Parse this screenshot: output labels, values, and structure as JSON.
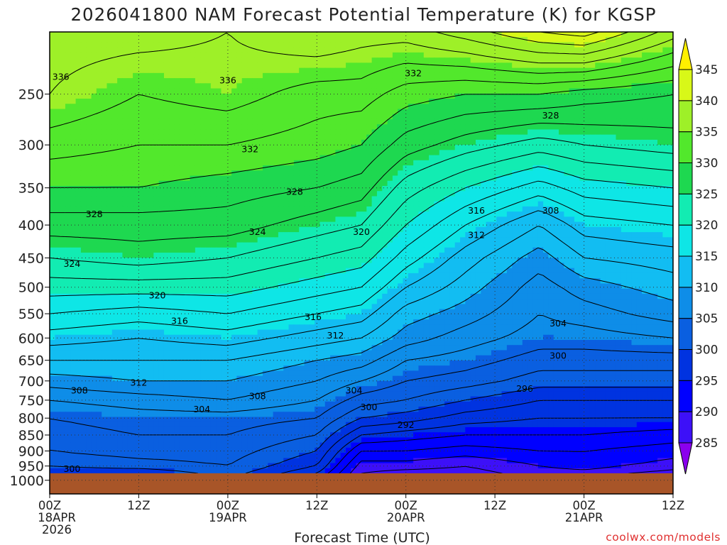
{
  "chart_data": {
    "type": "heatmap",
    "title": "2026041800 NAM Forecast Potential Temperature (K) for KGSP",
    "xlabel": "Forecast Time (UTC)",
    "ylabel": "",
    "watermark": "coolwx.com/models",
    "x_range_hours": [
      0,
      84
    ],
    "x_ticks": [
      {
        "hour": 0,
        "label": "00Z",
        "sub1": "18APR",
        "sub2": "2026"
      },
      {
        "hour": 12,
        "label": "12Z",
        "sub1": "",
        "sub2": ""
      },
      {
        "hour": 24,
        "label": "00Z",
        "sub1": "19APR",
        "sub2": ""
      },
      {
        "hour": 36,
        "label": "12Z",
        "sub1": "",
        "sub2": ""
      },
      {
        "hour": 48,
        "label": "00Z",
        "sub1": "20APR",
        "sub2": ""
      },
      {
        "hour": 60,
        "label": "12Z",
        "sub1": "",
        "sub2": ""
      },
      {
        "hour": 72,
        "label": "00Z",
        "sub1": "21APR",
        "sub2": ""
      },
      {
        "hour": 84,
        "label": "12Z",
        "sub1": "",
        "sub2": ""
      }
    ],
    "y_axis": {
      "type": "log-pressure",
      "range_hPa": [
        1050,
        200
      ]
    },
    "y_ticks": [
      250,
      300,
      350,
      400,
      450,
      500,
      550,
      600,
      650,
      700,
      750,
      800,
      850,
      900,
      950,
      1000
    ],
    "ground_pressure_hPa": 975,
    "colorbar": {
      "levels": [
        285,
        290,
        295,
        300,
        305,
        310,
        315,
        320,
        325,
        330,
        335,
        340,
        345
      ],
      "colors": [
        "#8a00ee",
        "#3d10f8",
        "#0000ff",
        "#0033e0",
        "#0a5fe0",
        "#0e8de8",
        "#12bdf2",
        "#0ee6e6",
        "#12ecb2",
        "#1ed850",
        "#52e82c",
        "#9ef028",
        "#d8f818",
        "#fff000"
      ]
    },
    "profile_levels_hPa": [
      200,
      250,
      300,
      350,
      400,
      450,
      500,
      550,
      600,
      650,
      700,
      750,
      800,
      850,
      900,
      950,
      975
    ],
    "profiles": [
      {
        "hour": 0,
        "theta": [
          337,
          336,
          333,
          330,
          327,
          324,
          321,
          318,
          315,
          312,
          309,
          306,
          304,
          303,
          302,
          300,
          299
        ]
      },
      {
        "hour": 12,
        "theta": [
          337,
          334,
          332,
          330,
          327,
          325,
          321,
          317,
          314,
          312,
          310,
          307,
          305,
          304,
          303,
          301,
          298
        ]
      },
      {
        "hour": 24,
        "theta": [
          336,
          335,
          332,
          329,
          327,
          324,
          321,
          318,
          315,
          312,
          310,
          308,
          305,
          304,
          303,
          302,
          301
        ]
      },
      {
        "hour": 36,
        "theta": [
          338,
          333,
          331,
          328,
          325,
          322,
          319,
          316,
          313,
          310,
          308,
          306,
          304,
          302,
          300,
          298,
          296
        ]
      },
      {
        "hour": 42,
        "theta": [
          337,
          333,
          330,
          327,
          324,
          321,
          318,
          315,
          312,
          309,
          306,
          303,
          300,
          296,
          292,
          289,
          288
        ]
      },
      {
        "hour": 48,
        "theta": [
          337,
          331,
          327,
          323,
          320,
          317,
          314,
          311,
          309,
          306,
          304,
          302,
          299,
          295,
          292,
          289,
          287
        ]
      },
      {
        "hour": 56,
        "theta": [
          339,
          330,
          325,
          320,
          316,
          313,
          311,
          309,
          307,
          305,
          303,
          300,
          297,
          294,
          291,
          288,
          287
        ]
      },
      {
        "hour": 66,
        "theta": [
          342,
          330,
          323,
          317,
          312,
          309,
          307,
          306,
          305,
          303,
          301,
          298,
          296,
          294,
          292,
          290,
          289
        ]
      },
      {
        "hour": 72,
        "theta": [
          343,
          329,
          324,
          319,
          315,
          312,
          309,
          307,
          305,
          303,
          301,
          298,
          296,
          294,
          292,
          291,
          289
        ]
      },
      {
        "hour": 84,
        "theta": [
          337,
          328,
          325,
          320,
          316,
          313,
          311,
          309,
          306,
          303,
          301,
          298,
          296,
          293,
          291,
          289,
          287
        ]
      }
    ],
    "contour_interval_K": 2,
    "contour_labels": [
      {
        "hour": 1.5,
        "hPa": 235,
        "value": "336"
      },
      {
        "hour": 24,
        "hPa": 238,
        "value": "336"
      },
      {
        "hour": 49,
        "hPa": 232,
        "value": "332"
      },
      {
        "hour": 67.5,
        "hPa": 270,
        "value": "328"
      },
      {
        "hour": 27,
        "hPa": 305,
        "value": "332"
      },
      {
        "hour": 33,
        "hPa": 355,
        "value": "328"
      },
      {
        "hour": 6,
        "hPa": 385,
        "value": "328"
      },
      {
        "hour": 28,
        "hPa": 410,
        "value": "324"
      },
      {
        "hour": 42,
        "hPa": 410,
        "value": "320"
      },
      {
        "hour": 57.5,
        "hPa": 380,
        "value": "316"
      },
      {
        "hour": 57.5,
        "hPa": 415,
        "value": "312"
      },
      {
        "hour": 67.5,
        "hPa": 380,
        "value": "308"
      },
      {
        "hour": 3,
        "hPa": 460,
        "value": "324"
      },
      {
        "hour": 14.5,
        "hPa": 515,
        "value": "320"
      },
      {
        "hour": 17.5,
        "hPa": 565,
        "value": "316"
      },
      {
        "hour": 35.5,
        "hPa": 557,
        "value": "316"
      },
      {
        "hour": 38.5,
        "hPa": 595,
        "value": "312"
      },
      {
        "hour": 12,
        "hPa": 705,
        "value": "312"
      },
      {
        "hour": 4,
        "hPa": 725,
        "value": "308"
      },
      {
        "hour": 28,
        "hPa": 740,
        "value": "308"
      },
      {
        "hour": 41,
        "hPa": 725,
        "value": "304"
      },
      {
        "hour": 20.5,
        "hPa": 775,
        "value": "304"
      },
      {
        "hour": 68.5,
        "hPa": 570,
        "value": "304"
      },
      {
        "hour": 68.5,
        "hPa": 640,
        "value": "300"
      },
      {
        "hour": 64,
        "hPa": 720,
        "value": "296"
      },
      {
        "hour": 43,
        "hPa": 770,
        "value": "300"
      },
      {
        "hour": 48,
        "hPa": 820,
        "value": "292"
      },
      {
        "hour": 3,
        "hPa": 960,
        "value": "300"
      }
    ]
  },
  "colors": {
    "ground": "#a85528",
    "background": "#ffffff"
  }
}
